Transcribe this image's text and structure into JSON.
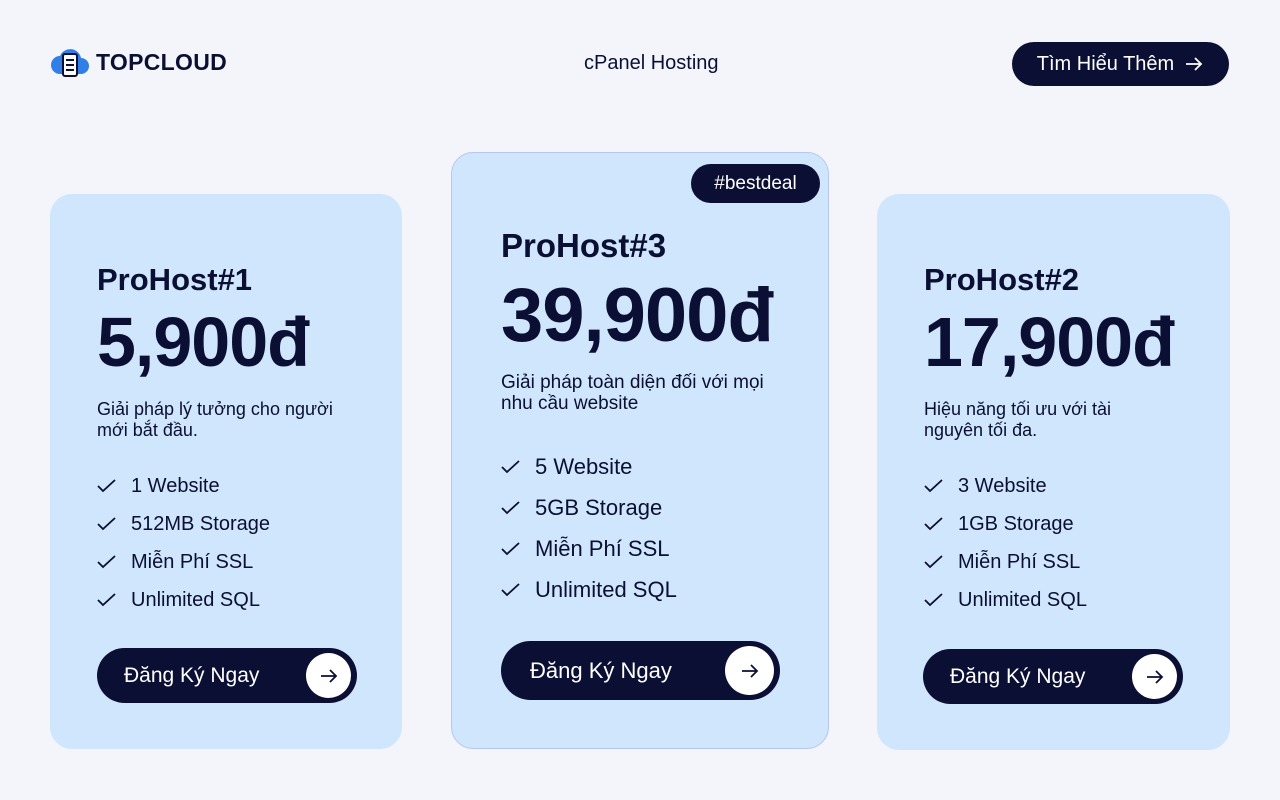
{
  "header": {
    "logo": "TOPCLOUD",
    "nav": "cPanel Hosting",
    "button": "Tìm Hiểu Thêm"
  },
  "plans": [
    {
      "name": "ProHost#1",
      "price": "5,900đ",
      "description": "Giải pháp lý tưởng cho người mới bắt đầu.",
      "features": [
        "1 Website",
        "512MB Storage",
        "Miễn Phí SSL",
        "Unlimited SQL"
      ],
      "cta": "Đăng Ký Ngay"
    },
    {
      "badge": "#bestdeal",
      "name": "ProHost#3",
      "price": "39,900đ",
      "description": "Giải pháp toàn diện đối với mọi nhu cầu website",
      "features": [
        "5 Website",
        "5GB Storage",
        "Miễn Phí SSL",
        "Unlimited SQL"
      ],
      "cta": "Đăng Ký Ngay"
    },
    {
      "name": "ProHost#2",
      "price": "17,900đ",
      "description": "Hiệu năng tối ưu với tài nguyên tối đa.",
      "features": [
        "3 Website",
        "1GB Storage",
        "Miễn Phí SSL",
        "Unlimited SQL"
      ],
      "cta": "Đăng Ký Ngay"
    }
  ]
}
